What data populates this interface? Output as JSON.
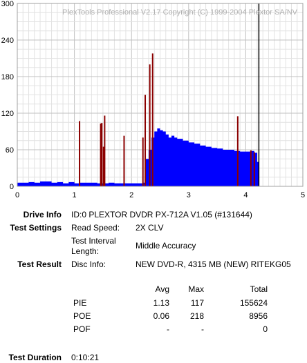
{
  "chart_data": {
    "type": "bar",
    "watermark": "PlexTools Professional V2.17 Copyright (C) 1999-2004 Plextor SA/NV",
    "xlim": [
      0,
      5
    ],
    "ylim": [
      0,
      300
    ],
    "x_ticks": [
      "0",
      "1",
      "2",
      "3",
      "4",
      "5"
    ],
    "y_ticks": [
      "0",
      "60",
      "120",
      "180",
      "240",
      "300"
    ],
    "grid": true,
    "series": [
      {
        "kind": "PIE",
        "color": "#0000ff",
        "points": [
          [
            0.0,
            6
          ],
          [
            0.1,
            6
          ],
          [
            0.2,
            7
          ],
          [
            0.3,
            6
          ],
          [
            0.4,
            8
          ],
          [
            0.5,
            8
          ],
          [
            0.6,
            6
          ],
          [
            0.7,
            7
          ],
          [
            0.8,
            5
          ],
          [
            0.9,
            7
          ],
          [
            1.0,
            5
          ],
          [
            1.1,
            6
          ],
          [
            1.2,
            6
          ],
          [
            1.3,
            6
          ],
          [
            1.4,
            5
          ],
          [
            1.5,
            5
          ],
          [
            1.6,
            6
          ],
          [
            1.7,
            5
          ],
          [
            1.8,
            5
          ],
          [
            1.9,
            5
          ],
          [
            2.0,
            5
          ],
          [
            2.1,
            5
          ],
          [
            2.2,
            6
          ],
          [
            2.25,
            45
          ],
          [
            2.3,
            60
          ],
          [
            2.35,
            80
          ],
          [
            2.4,
            90
          ],
          [
            2.45,
            95
          ],
          [
            2.5,
            92
          ],
          [
            2.55,
            90
          ],
          [
            2.6,
            85
          ],
          [
            2.65,
            80
          ],
          [
            2.7,
            83
          ],
          [
            2.75,
            80
          ],
          [
            2.8,
            78
          ],
          [
            2.9,
            75
          ],
          [
            3.0,
            72
          ],
          [
            3.1,
            70
          ],
          [
            3.2,
            67
          ],
          [
            3.3,
            65
          ],
          [
            3.4,
            63
          ],
          [
            3.5,
            62
          ],
          [
            3.6,
            60
          ],
          [
            3.7,
            60
          ],
          [
            3.8,
            58
          ],
          [
            3.9,
            57
          ],
          [
            4.0,
            57
          ],
          [
            4.1,
            58
          ],
          [
            4.15,
            55
          ],
          [
            4.2,
            40
          ]
        ]
      },
      {
        "kind": "POE",
        "color": "#8b0000",
        "points": [
          [
            1.09,
            107
          ],
          [
            1.46,
            103
          ],
          [
            1.48,
            104
          ],
          [
            1.51,
            65
          ],
          [
            1.53,
            116
          ],
          [
            1.87,
            83
          ],
          [
            2.2,
            80
          ],
          [
            2.24,
            150
          ],
          [
            2.32,
            200
          ],
          [
            2.37,
            218
          ],
          [
            3.86,
            115
          ],
          [
            4.09,
            59
          ],
          [
            4.15,
            56
          ]
        ]
      },
      {
        "kind": "marker",
        "color": "#000000",
        "points": [
          [
            4.23,
            300
          ]
        ]
      }
    ]
  },
  "report": {
    "drive_info_label": "Drive Info",
    "drive_info_value": "ID:0 PLEXTOR DVDR PX-712A V1.05 (#131644)",
    "test_settings_label": "Test Settings",
    "read_speed_label": "Read Speed:",
    "read_speed_value": "2X CLV",
    "interval_label_1": "Test Interval",
    "interval_label_2": "Length:",
    "interval_value": "Middle Accuracy",
    "test_result_label": "Test Result",
    "disc_info_label": "Disc Info:",
    "disc_info_value": "NEW DVD-R, 4315 MB (NEW) RITEKG05",
    "col_avg": "Avg",
    "col_max": "Max",
    "col_total": "Total",
    "rows": [
      {
        "name": "PIE",
        "avg": "1.13",
        "max": "117",
        "total": "155624"
      },
      {
        "name": "POE",
        "avg": "0.06",
        "max": "218",
        "total": "8956"
      },
      {
        "name": "POF",
        "avg": "-",
        "max": "-",
        "total": "0"
      }
    ],
    "duration_label": "Test Duration",
    "duration_value": "0:10:21"
  }
}
